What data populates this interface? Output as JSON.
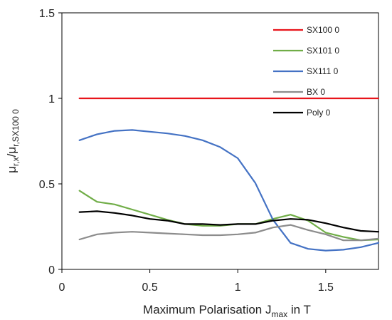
{
  "chart_data": {
    "type": "line",
    "title": "",
    "xlabel": {
      "main": "Maximum Polarisation J",
      "sub": "max",
      "suffix": " in T"
    },
    "ylabel": {
      "mu1": "μ",
      "sub1": "r,x",
      "slash": "/",
      "mu2": "μ",
      "sub2": "r,SX100 0"
    },
    "xlim": [
      0,
      1.8
    ],
    "ylim": [
      0,
      1.5
    ],
    "xticks": [
      0,
      0.5,
      1,
      1.5
    ],
    "xtick_labels": [
      "0",
      "0.5",
      "1",
      "1.5"
    ],
    "yticks": [
      0,
      0.5,
      1,
      1.5
    ],
    "ytick_labels": [
      "0",
      "0.5",
      "1",
      "1.5"
    ],
    "grid": false,
    "legend_position": "top-right",
    "x": [
      0.1,
      0.2,
      0.3,
      0.4,
      0.5,
      0.6,
      0.7,
      0.8,
      0.9,
      1.0,
      1.1,
      1.2,
      1.3,
      1.4,
      1.5,
      1.6,
      1.7,
      1.8
    ],
    "series": [
      {
        "name": "SX100 0",
        "color": "#e8141b",
        "values": [
          1,
          1,
          1,
          1,
          1,
          1,
          1,
          1,
          1,
          1,
          1,
          1,
          1,
          1,
          1,
          1,
          1,
          1
        ]
      },
      {
        "name": "SX101 0",
        "color": "#70ad47",
        "values": [
          0.46,
          0.395,
          0.38,
          0.35,
          0.32,
          0.29,
          0.265,
          0.255,
          0.255,
          0.265,
          0.265,
          0.295,
          0.32,
          0.285,
          0.215,
          0.19,
          0.17,
          0.175
        ]
      },
      {
        "name": "SX111 0",
        "color": "#4472c4",
        "values": [
          0.755,
          0.79,
          0.81,
          0.815,
          0.805,
          0.795,
          0.78,
          0.755,
          0.715,
          0.65,
          0.505,
          0.29,
          0.155,
          0.12,
          0.11,
          0.115,
          0.13,
          0.155
        ]
      },
      {
        "name": "BX 0",
        "color": "#8c8c8c",
        "values": [
          0.175,
          0.205,
          0.215,
          0.22,
          0.215,
          0.21,
          0.205,
          0.2,
          0.2,
          0.205,
          0.215,
          0.245,
          0.26,
          0.23,
          0.205,
          0.17,
          0.17,
          0.18
        ]
      },
      {
        "name": "Poly 0",
        "color": "#000000",
        "values": [
          0.335,
          0.34,
          0.33,
          0.315,
          0.295,
          0.285,
          0.265,
          0.265,
          0.26,
          0.265,
          0.265,
          0.285,
          0.295,
          0.29,
          0.27,
          0.245,
          0.225,
          0.22
        ]
      }
    ]
  }
}
